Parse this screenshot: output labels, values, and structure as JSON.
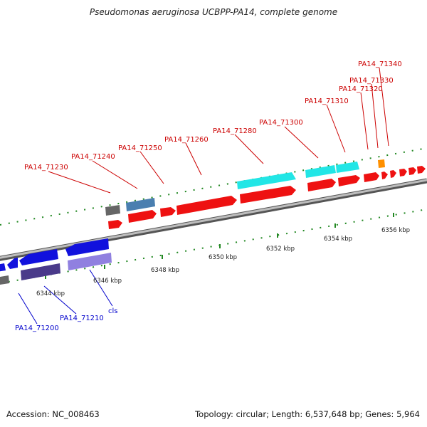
{
  "title": "Pseudomonas aeruginosa UCBPP-PA14, complete genome",
  "footer": {
    "accession": "Accession: NC_008463",
    "topology": "Topology: circular; Length: 6,537,648 bp; Genes: 5,964"
  },
  "scale": {
    "unit": "kbp",
    "ticks": [
      {
        "label": "6344 kbp"
      },
      {
        "label": "6346 kbp"
      },
      {
        "label": "6348 kbp"
      },
      {
        "label": "6350 kbp"
      },
      {
        "label": "6352 kbp"
      },
      {
        "label": "6354 kbp"
      },
      {
        "label": "6356 kbp"
      }
    ]
  },
  "colors": {
    "forward_gene": "#ee1111",
    "reverse_gene": "#1111dd",
    "label_forward": "#cc0000",
    "label_reverse": "#0000cc",
    "cyan_gene": "#22e6e6",
    "steelblue_gene": "#4a7fb0",
    "gray_gene": "#666666",
    "orange_gene": "#ff9000",
    "purple_gene": "#9080e0",
    "indigo_gene": "#4a3a8a",
    "backbone": "#9a9a9a",
    "tick": "#228822"
  },
  "gene_labels": [
    {
      "text": "PA14_71230",
      "strand": "forward"
    },
    {
      "text": "PA14_71240",
      "strand": "forward"
    },
    {
      "text": "PA14_71250",
      "strand": "forward"
    },
    {
      "text": "PA14_71260",
      "strand": "forward"
    },
    {
      "text": "PA14_71280",
      "strand": "forward"
    },
    {
      "text": "PA14_71300",
      "strand": "forward"
    },
    {
      "text": "PA14_71310",
      "strand": "forward"
    },
    {
      "text": "PA14_71320",
      "strand": "forward"
    },
    {
      "text": "PA14_71330",
      "strand": "forward"
    },
    {
      "text": "PA14_71340",
      "strand": "forward"
    },
    {
      "text": "PA14_71200",
      "strand": "reverse"
    },
    {
      "text": "PA14_71210",
      "strand": "reverse"
    },
    {
      "text": "cls",
      "strand": "reverse"
    }
  ]
}
